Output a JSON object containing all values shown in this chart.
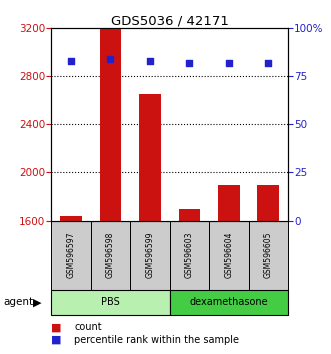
{
  "title": "GDS5036 / 42171",
  "samples": [
    "GSM596597",
    "GSM596598",
    "GSM596599",
    "GSM596603",
    "GSM596604",
    "GSM596605"
  ],
  "counts": [
    1640,
    3200,
    2650,
    1700,
    1900,
    1900
  ],
  "percentiles": [
    83,
    84,
    83,
    82,
    82,
    82
  ],
  "groups": [
    "PBS",
    "PBS",
    "PBS",
    "dexamethasone",
    "dexamethasone",
    "dexamethasone"
  ],
  "group_labels": [
    "PBS",
    "dexamethasone"
  ],
  "group_colors": [
    "#b8f0b0",
    "#44cc44"
  ],
  "bar_color": "#cc1111",
  "dot_color": "#2222cc",
  "ylim_left": [
    1600,
    3200
  ],
  "ylim_right": [
    0,
    100
  ],
  "yticks_left": [
    1600,
    2000,
    2400,
    2800,
    3200
  ],
  "yticks_right": [
    0,
    25,
    50,
    75,
    100
  ],
  "ytick_right_labels": [
    "0",
    "25",
    "50",
    "75",
    "100%"
  ],
  "grid_yticks": [
    1600,
    2000,
    2400,
    2800
  ],
  "bar_color_hex": "#cc1111",
  "dot_color_hex": "#2222cc",
  "bar_width": 0.55,
  "legend_labels": [
    "count",
    "percentile rank within the sample"
  ]
}
